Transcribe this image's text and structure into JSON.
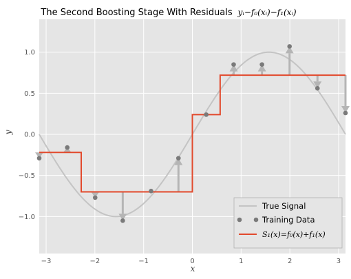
{
  "chart_data": {
    "type": "line",
    "title": "The Second Boosting Stage With Residuals",
    "title_math": "yᵢ−f₀(xᵢ)−f₁(xᵢ)",
    "xlabel": "x",
    "ylabel": "y",
    "xlim": [
      -3.14159,
      3.14159
    ],
    "ylim": [
      -1.45,
      1.4
    ],
    "xticks": [
      -3,
      -2,
      -1,
      0,
      1,
      2,
      3
    ],
    "yticks": [
      -1.0,
      -0.5,
      0.0,
      0.5,
      1.0
    ],
    "xtick_labels": [
      "−3",
      "−2",
      "−1",
      "0",
      "1",
      "2",
      "3"
    ],
    "ytick_labels": [
      "−1.0",
      "−0.5",
      "0.0",
      "0.5",
      "1.0"
    ],
    "grid": true,
    "legend_position": "lower-right",
    "colors": {
      "background": "#e5e5e5",
      "grid": "#ffffff",
      "true_signal": "#c4c4c4",
      "training": "#7a7a7a",
      "step": "#e2492c",
      "residual_arrow": "#b5b5b5"
    },
    "series": [
      {
        "name": "True Signal",
        "kind": "function",
        "function": "sin(x)"
      },
      {
        "name": "Training Data",
        "kind": "scatter",
        "x": [
          -3.1416,
          -2.5664,
          -1.994,
          -1.428,
          -0.847,
          -0.2854,
          0.2854,
          0.847,
          1.428,
          1.994,
          2.5664,
          3.1416
        ],
        "y": [
          -0.29,
          -0.16,
          -0.77,
          -1.05,
          -0.69,
          -0.29,
          0.24,
          0.85,
          0.85,
          1.07,
          0.56,
          0.26
        ]
      },
      {
        "name": "S₁(x)=f₀(x)+f₁(x)",
        "kind": "step",
        "x": [
          -3.1416,
          -2.28,
          -2.28,
          0.0,
          0.0,
          0.57,
          0.57,
          3.1416
        ],
        "y": [
          -0.22,
          -0.22,
          -0.7,
          -0.7,
          0.24,
          0.24,
          0.72,
          0.72
        ]
      }
    ],
    "residuals": {
      "x": [
        -3.1416,
        -2.5664,
        -1.994,
        -1.428,
        -0.847,
        -0.2854,
        0.2854,
        0.847,
        1.428,
        1.994,
        2.5664,
        3.1416
      ],
      "from": [
        -0.22,
        -0.22,
        -0.7,
        -0.7,
        -0.7,
        -0.7,
        0.24,
        0.72,
        0.72,
        0.72,
        0.72,
        0.72
      ],
      "to": [
        -0.29,
        -0.16,
        -0.77,
        -1.05,
        -0.69,
        -0.29,
        0.24,
        0.85,
        0.85,
        1.07,
        0.56,
        0.26
      ]
    },
    "legend": {
      "entries": [
        "True Signal",
        "Training Data",
        "S₁(x)=f₀(x)+f₁(x)"
      ]
    }
  }
}
